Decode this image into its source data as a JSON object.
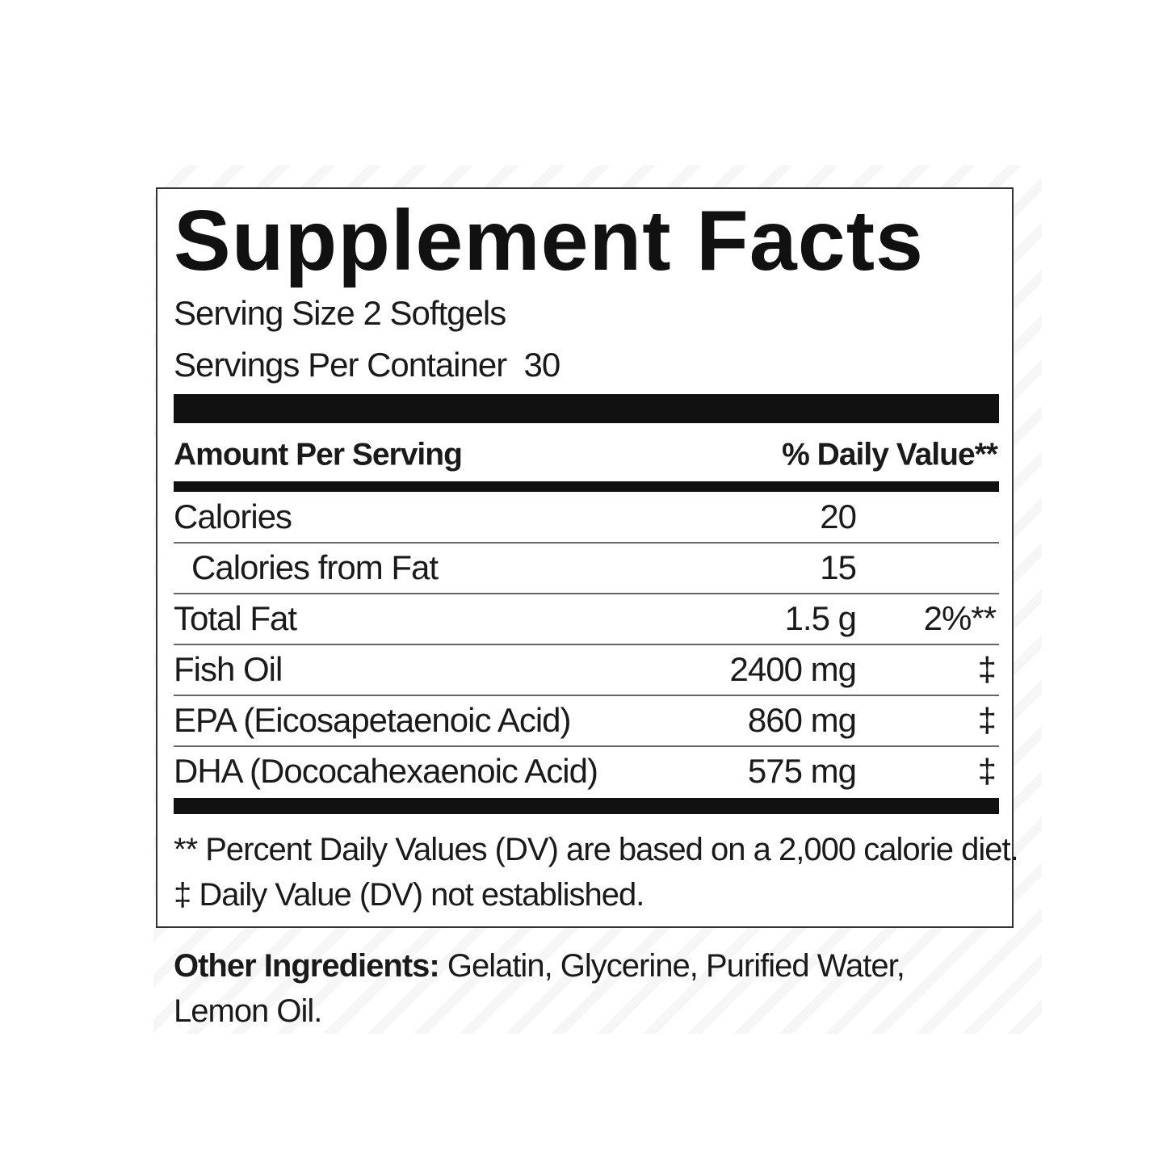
{
  "label": {
    "title": "Supplement Facts",
    "serving_size": "Serving Size 2 Softgels",
    "servings_per_container": "Servings Per Container  30",
    "header": {
      "amount": "Amount Per Serving",
      "daily_value": "% Daily Value**"
    },
    "rows": [
      {
        "name": "Calories",
        "amount": "20"
      },
      {
        "name": "Calories from Fat",
        "amount": "15",
        "indent": true
      },
      {
        "name": "Total Fat",
        "amount": "1.5 g",
        "daily_value": "2%**"
      },
      {
        "name": "Fish Oil",
        "amount": "2400 mg",
        "daily_value": "‡"
      },
      {
        "name": "EPA (Eicosapetaenoic Acid)",
        "amount": "860 mg",
        "daily_value": "‡"
      },
      {
        "name": "DHA (Dococahexaenoic Acid)",
        "amount": "575 mg",
        "daily_value": "‡"
      }
    ],
    "footnotes": [
      "** Percent Daily Values (DV) are based on a 2,000 calorie diet.",
      "‡ Daily Value (DV) not established."
    ],
    "other_ingredients": {
      "label": "Other Ingredients:",
      "text": "Gelatin, Glycerine, Purified Water,",
      "text_line2": "Lemon Oil."
    }
  }
}
